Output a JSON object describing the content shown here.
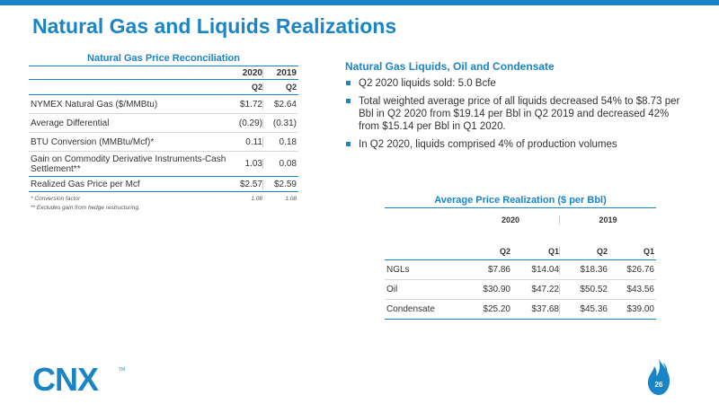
{
  "page": {
    "title": "Natural Gas and Liquids Realizations",
    "page_number": "26",
    "brand_color": "#1a85c6",
    "logo_text": "CNX"
  },
  "left_table": {
    "title": "Natural Gas Price Reconciliation",
    "years": [
      "2020",
      "2019"
    ],
    "quarters": [
      "Q2",
      "Q2"
    ],
    "rows": [
      {
        "label": "NYMEX Natural Gas ($/MMBtu)",
        "v2020": "$1.72",
        "v2019": "$2.64"
      },
      {
        "label": "Average Differential",
        "v2020": "(0.29)",
        "v2019": "(0.31)"
      },
      {
        "label": "BTU Conversion (MMBtu/Mcf)*",
        "v2020": "0.11",
        "v2019": "0.18"
      },
      {
        "label": "Gain on Commodity Derivative Instruments-Cash Settlement**",
        "v2020": "1.03",
        "v2019": "0.08"
      }
    ],
    "total": {
      "label": "Realized Gas Price per Mcf",
      "v2020": "$2.57",
      "v2019": "$2.59"
    },
    "footnote1": {
      "label": "* Conversion factor",
      "v2020": "1.08",
      "v2019": "1.08"
    },
    "footnote2": "** Excludes gain from hedge restructuring."
  },
  "liquids": {
    "title": "Natural Gas Liquids, Oil and Condensate",
    "bullets": [
      "Q2 2020 liquids sold: 5.0 Bcfe",
      "Total weighted average price of all liquids decreased 54% to $8.73 per Bbl in Q2 2020 from $19.14 per Bbl in Q2 2019 and decreased 42% from $15.14 per Bbl in Q1 2020.",
      "In Q2 2020, liquids comprised 4% of production volumes"
    ]
  },
  "right_table": {
    "title": "Average Price Realization ($ per Bbl)",
    "years": [
      "2020",
      "2019"
    ],
    "quarters": [
      "Q2",
      "Q1",
      "Q2",
      "Q1"
    ],
    "rows": [
      {
        "label": "NGLs",
        "values": [
          "$7.86",
          "$14.04",
          "$18.36",
          "$26.76"
        ]
      },
      {
        "label": "Oil",
        "values": [
          "$30.90",
          "$47.22",
          "$50.52",
          "$43.56"
        ]
      },
      {
        "label": "Condensate",
        "values": [
          "$25.20",
          "$37.68",
          "$45.36",
          "$39.00"
        ]
      }
    ]
  }
}
